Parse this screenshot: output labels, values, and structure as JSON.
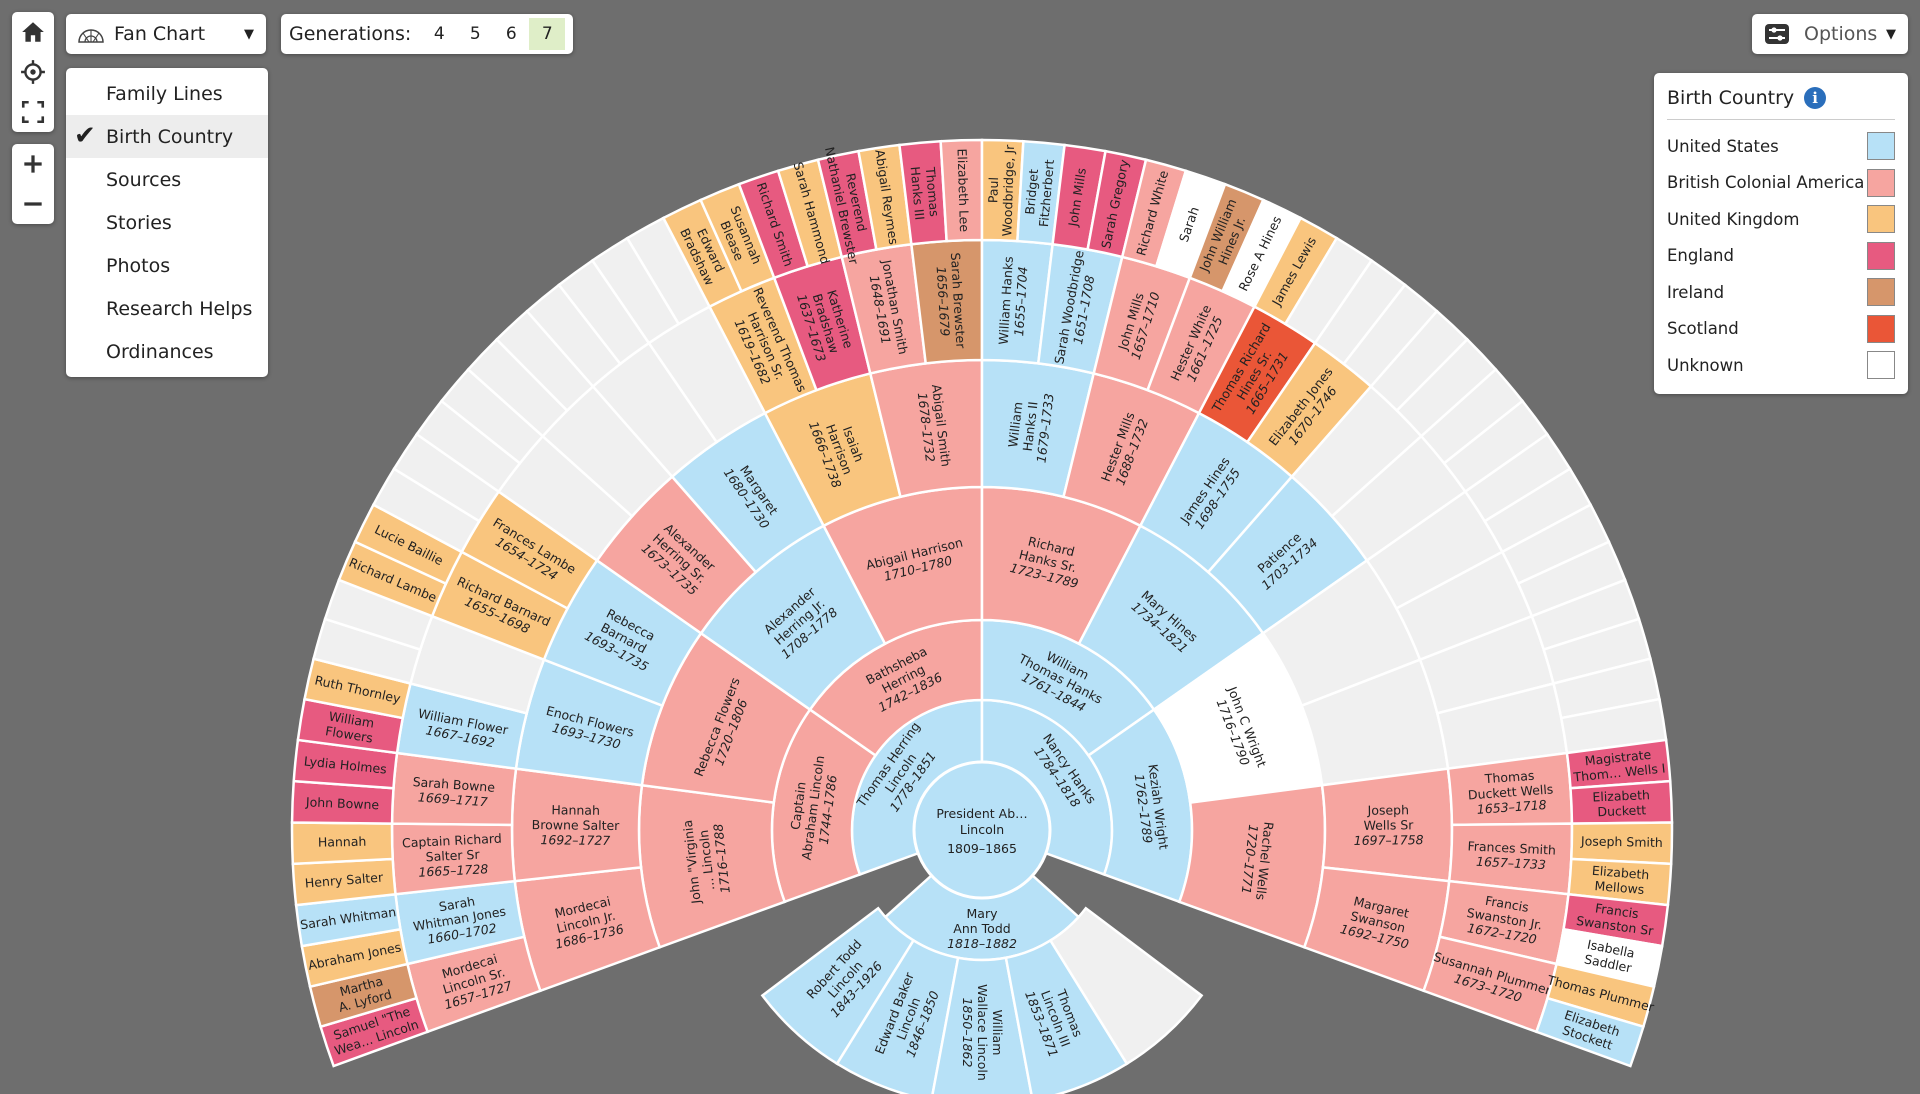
{
  "toolbar": {
    "view_label": "Fan Chart",
    "generations_label": "Generations:",
    "generation_options": [
      "4",
      "5",
      "6",
      "7"
    ],
    "generations_selected": "7",
    "options_label": "Options"
  },
  "view_menu": [
    "Family Lines",
    "Birth Country",
    "Sources",
    "Stories",
    "Photos",
    "Research Helps",
    "Ordinances"
  ],
  "view_menu_selected": "Birth Country",
  "legend": {
    "title": "Birth Country",
    "items": [
      {
        "label": "United States",
        "color": "#b7e1f7"
      },
      {
        "label": "British Colonial America",
        "color": "#f6a5a0"
      },
      {
        "label": "United Kingdom",
        "color": "#f9c57e"
      },
      {
        "label": "England",
        "color": "#e75a80"
      },
      {
        "label": "Ireland",
        "color": "#d6966b"
      },
      {
        "label": "Scotland",
        "color": "#ea5637"
      },
      {
        "label": "Unknown",
        "color": "#ffffff"
      }
    ]
  },
  "empty_color": "#f0f0f0",
  "root": {
    "name": "President Ab…",
    "name2": "Lincoln",
    "dates": "1809–1865"
  },
  "ancestors": [
    {
      "ring": 1,
      "slot": 0,
      "name": "Thomas Herring Lincoln",
      "dates": "1778–1851",
      "c": "US"
    },
    {
      "ring": 1,
      "slot": 1,
      "name": "Nancy Hanks",
      "dates": "1784–1818",
      "c": "US"
    },
    {
      "ring": 2,
      "slot": 0,
      "name": "Captain Abraham Lincoln",
      "dates": "1744–1786",
      "c": "BCA"
    },
    {
      "ring": 2,
      "slot": 1,
      "name": "Bathsheba Herring",
      "dates": "1742–1836",
      "c": "BCA"
    },
    {
      "ring": 2,
      "slot": 2,
      "name": "William Thomas Hanks",
      "dates": "1761–1844",
      "c": "US"
    },
    {
      "ring": 2,
      "slot": 3,
      "name": "Keziah Wright",
      "dates": "1762–1789",
      "c": "US"
    },
    {
      "ring": 3,
      "slot": 0,
      "name": "John \"Virginia … Lincoln",
      "dates": "1716–1788",
      "c": "BCA"
    },
    {
      "ring": 3,
      "slot": 1,
      "name": "Rebecca Flowers",
      "dates": "1720–1806",
      "c": "BCA"
    },
    {
      "ring": 3,
      "slot": 2,
      "name": "Alexander Herring Jr.",
      "dates": "1708–1778",
      "c": "US"
    },
    {
      "ring": 3,
      "slot": 3,
      "name": "Abigail Harrison",
      "dates": "1710–1780",
      "c": "BCA"
    },
    {
      "ring": 3,
      "slot": 4,
      "name": "Richard Hanks Sr.",
      "dates": "1723–1789",
      "c": "BCA"
    },
    {
      "ring": 3,
      "slot": 5,
      "name": "Mary Hines",
      "dates": "1734–1821",
      "c": "US"
    },
    {
      "ring": 3,
      "slot": 6,
      "name": "John C Wright",
      "dates": "1716–1790",
      "c": "UNK"
    },
    {
      "ring": 3,
      "slot": 7,
      "name": "Rachel Wells",
      "dates": "1720–1771",
      "c": "BCA"
    },
    {
      "ring": 4,
      "slot": 0,
      "name": "Mordecai Lincoln Jr.",
      "dates": "1686–1736",
      "c": "BCA"
    },
    {
      "ring": 4,
      "slot": 1,
      "name": "Hannah Browne Salter",
      "dates": "1692–1727",
      "c": "BCA"
    },
    {
      "ring": 4,
      "slot": 2,
      "name": "Enoch Flowers",
      "dates": "1693–1730",
      "c": "US"
    },
    {
      "ring": 4,
      "slot": 3,
      "name": "Rebecca Barnard",
      "dates": "1693–1735",
      "c": "US"
    },
    {
      "ring": 4,
      "slot": 4,
      "name": "Alexander Herring Sr.",
      "dates": "1673–1735",
      "c": "BCA"
    },
    {
      "ring": 4,
      "slot": 5,
      "name": "Margaret",
      "dates": "1680–1730",
      "c": "US"
    },
    {
      "ring": 4,
      "slot": 6,
      "name": "Isaiah Harrison",
      "dates": "1666–1738",
      "c": "UK"
    },
    {
      "ring": 4,
      "slot": 7,
      "name": "Abigail Smith",
      "dates": "1678–1732",
      "c": "BCA"
    },
    {
      "ring": 4,
      "slot": 8,
      "name": "William Hanks II",
      "dates": "1679–1733",
      "c": "US"
    },
    {
      "ring": 4,
      "slot": 9,
      "name": "Hester Mills",
      "dates": "1688–1732",
      "c": "BCA"
    },
    {
      "ring": 4,
      "slot": 10,
      "name": "James Hines",
      "dates": "1698–1755",
      "c": "US"
    },
    {
      "ring": 4,
      "slot": 11,
      "name": "Patience",
      "dates": "1703–1734",
      "c": "US"
    },
    {
      "ring": 4,
      "slot": 14,
      "name": "Joseph Wells Sr",
      "dates": "1697–1758",
      "c": "BCA"
    },
    {
      "ring": 4,
      "slot": 15,
      "name": "Margaret Swanson",
      "dates": "1692–1750",
      "c": "BCA"
    },
    {
      "ring": 5,
      "slot": 0,
      "name": "Mordecai Lincoln Sr.",
      "dates": "1657–1727",
      "c": "BCA"
    },
    {
      "ring": 5,
      "slot": 1,
      "name": "Sarah Whitman Jones",
      "dates": "1660–1702",
      "c": "US"
    },
    {
      "ring": 5,
      "slot": 2,
      "name": "Captain Richard Salter Sr",
      "dates": "1665–1728",
      "c": "BCA"
    },
    {
      "ring": 5,
      "slot": 3,
      "name": "Sarah Bowne",
      "dates": "1669–1717",
      "c": "BCA"
    },
    {
      "ring": 5,
      "slot": 4,
      "name": "William Flower",
      "dates": "1667–1692",
      "c": "US"
    },
    {
      "ring": 5,
      "slot": 6,
      "name": "Richard Barnard",
      "dates": "1655–1698",
      "c": "UK"
    },
    {
      "ring": 5,
      "slot": 7,
      "name": "Frances Lambe",
      "dates": "1654–1724",
      "c": "UK"
    },
    {
      "ring": 5,
      "slot": 12,
      "name": "Reverend Thomas Harrison Sr.",
      "dates": "1619–1682",
      "c": "UK"
    },
    {
      "ring": 5,
      "slot": 13,
      "name": "Katherine Bradshaw",
      "dates": "1637–1673",
      "c": "ENG"
    },
    {
      "ring": 5,
      "slot": 14,
      "name": "Jonathan Smith",
      "dates": "1648–1691",
      "c": "BCA"
    },
    {
      "ring": 5,
      "slot": 15,
      "name": "Sarah Brewster",
      "dates": "1656–1679",
      "c": "IRE"
    },
    {
      "ring": 5,
      "slot": 16,
      "name": "William Hanks",
      "dates": "1655–1704",
      "c": "US"
    },
    {
      "ring": 5,
      "slot": 17,
      "name": "Sarah Woodbridge",
      "dates": "1651–1708",
      "c": "US"
    },
    {
      "ring": 5,
      "slot": 18,
      "name": "John Mills",
      "dates": "1657–1710",
      "c": "BCA"
    },
    {
      "ring": 5,
      "slot": 19,
      "name": "Hester White",
      "dates": "1661–1725",
      "c": "BCA"
    },
    {
      "ring": 5,
      "slot": 20,
      "name": "Thomas Richard Hines Sr.",
      "dates": "1665–1731",
      "c": "SCO"
    },
    {
      "ring": 5,
      "slot": 21,
      "name": "Elizabeth Jones",
      "dates": "1670–1746",
      "c": "UK"
    },
    {
      "ring": 5,
      "slot": 28,
      "name": "Thomas Duckett Wells",
      "dates": "1653–1718",
      "c": "BCA"
    },
    {
      "ring": 5,
      "slot": 29,
      "name": "Frances Smith",
      "dates": "1657–1733",
      "c": "BCA"
    },
    {
      "ring": 5,
      "slot": 30,
      "name": "Francis Swanston Jr.",
      "dates": "1672–1720",
      "c": "BCA"
    },
    {
      "ring": 5,
      "slot": 31,
      "name": "Susannah Plummer",
      "dates": "1673–1720",
      "c": "BCA"
    },
    {
      "ring": 6,
      "slot": 0,
      "name": "Samuel \"The Wea… Lincoln",
      "c": "ENG"
    },
    {
      "ring": 6,
      "slot": 1,
      "name": "Martha A. Lyford",
      "c": "IRE"
    },
    {
      "ring": 6,
      "slot": 2,
      "name": "Abraham Jones",
      "c": "UK"
    },
    {
      "ring": 6,
      "slot": 3,
      "name": "Sarah Whitman",
      "c": "US"
    },
    {
      "ring": 6,
      "slot": 4,
      "name": "Henry Salter",
      "c": "UK"
    },
    {
      "ring": 6,
      "slot": 5,
      "name": "Hannah",
      "c": "UK"
    },
    {
      "ring": 6,
      "slot": 6,
      "name": "John Bowne",
      "c": "ENG"
    },
    {
      "ring": 6,
      "slot": 7,
      "name": "Lydia Holmes",
      "c": "ENG"
    },
    {
      "ring": 6,
      "slot": 8,
      "name": "William Flowers",
      "c": "ENG"
    },
    {
      "ring": 6,
      "slot": 9,
      "name": "Ruth Thornley",
      "c": "UK"
    },
    {
      "ring": 6,
      "slot": 12,
      "name": "Richard Lambe",
      "c": "UK"
    },
    {
      "ring": 6,
      "slot": 13,
      "name": "Lucie Baillie",
      "c": "UK"
    },
    {
      "ring": 6,
      "slot": 24,
      "name": "Edward Bradshaw",
      "c": "UK"
    },
    {
      "ring": 6,
      "slot": 25,
      "name": "Susannah Blease",
      "c": "UK"
    },
    {
      "ring": 6,
      "slot": 26,
      "name": "Richard Smith",
      "c": "ENG"
    },
    {
      "ring": 6,
      "slot": 27,
      "name": "Sarah Hammond",
      "c": "UK"
    },
    {
      "ring": 6,
      "slot": 28,
      "name": "Reverend Nathaniel Brewster",
      "c": "ENG"
    },
    {
      "ring": 6,
      "slot": 29,
      "name": "Abigail Reymes",
      "c": "UK"
    },
    {
      "ring": 6,
      "slot": 30,
      "name": "Thomas Hanks III",
      "c": "ENG"
    },
    {
      "ring": 6,
      "slot": 31,
      "name": "Elizabeth Lee",
      "c": "BCA"
    },
    {
      "ring": 6,
      "slot": 32,
      "name": "Paul Woodbridge, Jr",
      "c": "UK"
    },
    {
      "ring": 6,
      "slot": 33,
      "name": "Bridget Fitzherbert",
      "c": "US"
    },
    {
      "ring": 6,
      "slot": 34,
      "name": "John Mills",
      "c": "ENG"
    },
    {
      "ring": 6,
      "slot": 35,
      "name": "Sarah Gregory",
      "c": "ENG"
    },
    {
      "ring": 6,
      "slot": 36,
      "name": "Richard White",
      "c": "BCA"
    },
    {
      "ring": 6,
      "slot": 37,
      "name": "Sarah",
      "c": "UNK"
    },
    {
      "ring": 6,
      "slot": 38,
      "name": "John William Hines Jr.",
      "c": "IRE"
    },
    {
      "ring": 6,
      "slot": 39,
      "name": "Rose A Hines",
      "c": "UNK"
    },
    {
      "ring": 6,
      "slot": 40,
      "name": "James Lewis",
      "c": "UK"
    },
    {
      "ring": 6,
      "slot": 56,
      "name": "Magistrate Thom… Wells I",
      "c": "ENG"
    },
    {
      "ring": 6,
      "slot": 57,
      "name": "Elizabeth Duckett",
      "c": "ENG"
    },
    {
      "ring": 6,
      "slot": 58,
      "name": "Joseph Smith",
      "c": "UK"
    },
    {
      "ring": 6,
      "slot": 59,
      "name": "Elizabeth Mellows",
      "c": "UK"
    },
    {
      "ring": 6,
      "slot": 60,
      "name": "Francis Swanston Sr",
      "c": "ENG"
    },
    {
      "ring": 6,
      "slot": 61,
      "name": "Isabella Saddler",
      "c": "UNK"
    },
    {
      "ring": 6,
      "slot": 62,
      "name": "Thomas Plummer",
      "c": "UK"
    },
    {
      "ring": 6,
      "slot": 63,
      "name": "Elizabeth Stockett",
      "c": "US"
    }
  ],
  "spouse": {
    "name": "Mary Ann Todd",
    "dates": "1818–1882",
    "c": "US"
  },
  "children": [
    {
      "name": "Robert Todd Lincoln",
      "dates": "1843–1926",
      "c": "US"
    },
    {
      "name": "Edward Baker Lincoln",
      "dates": "1846–1850",
      "c": "US"
    },
    {
      "name": "William Wallace Lincoln",
      "dates": "1850–1862",
      "c": "US"
    },
    {
      "name": "Thomas Lincoln III",
      "dates": "1853–1871",
      "c": "US"
    },
    {
      "name": "",
      "dates": "",
      "c": "EMPTY"
    }
  ]
}
